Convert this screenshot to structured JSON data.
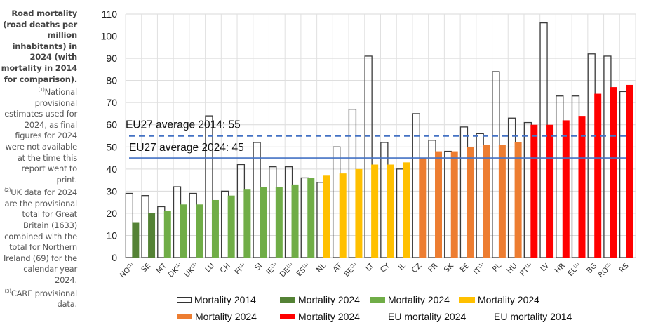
{
  "side_note": {
    "title": "Road mortality (road deaths per million inhabitants) in 2024 (with mortality in 2014 for comparison).",
    "notes": [
      {
        "marker": "(1)",
        "text": "National provisional estimates used for 2024, as final figures for 2024 were not available at the time this report went to print."
      },
      {
        "marker": "(2)",
        "text": "UK data for 2024 are the provisional total for Great Britain (1633) combined with the total for Northern Ireland (69) for the calendar year 2024."
      },
      {
        "marker": "(3)",
        "text": "CARE provisional data."
      }
    ]
  },
  "chart_data": {
    "type": "bar",
    "title": "Road mortality (road deaths per million inhabitants) in 2024 (with mortality in 2014 for comparison)",
    "xlabel": "",
    "ylabel": "",
    "ylim": [
      0,
      110
    ],
    "yticks": [
      0,
      10,
      20,
      30,
      40,
      50,
      60,
      70,
      80,
      90,
      100,
      110
    ],
    "grid": true,
    "categories": [
      {
        "code": "NO",
        "note": "(1)"
      },
      {
        "code": "SE",
        "note": ""
      },
      {
        "code": "MT",
        "note": ""
      },
      {
        "code": "DK",
        "note": "(1)"
      },
      {
        "code": "UK",
        "note": "(2)"
      },
      {
        "code": "LU",
        "note": ""
      },
      {
        "code": "CH",
        "note": ""
      },
      {
        "code": "FI",
        "note": "(1)"
      },
      {
        "code": "SI",
        "note": ""
      },
      {
        "code": "IE",
        "note": "(1)"
      },
      {
        "code": "DE",
        "note": "(1)"
      },
      {
        "code": "ES",
        "note": "(1)"
      },
      {
        "code": "NL",
        "note": ""
      },
      {
        "code": "AT",
        "note": ""
      },
      {
        "code": "BE",
        "note": "(1)"
      },
      {
        "code": "LT",
        "note": ""
      },
      {
        "code": "CY",
        "note": ""
      },
      {
        "code": "IL",
        "note": ""
      },
      {
        "code": "CZ",
        "note": ""
      },
      {
        "code": "FR",
        "note": ""
      },
      {
        "code": "SK",
        "note": ""
      },
      {
        "code": "EE",
        "note": ""
      },
      {
        "code": "IT",
        "note": "(1)"
      },
      {
        "code": "PL",
        "note": ""
      },
      {
        "code": "HU",
        "note": ""
      },
      {
        "code": "PT",
        "note": "(1)"
      },
      {
        "code": "LV",
        "note": ""
      },
      {
        "code": "HR",
        "note": ""
      },
      {
        "code": "EL",
        "note": "(1)"
      },
      {
        "code": "BG",
        "note": ""
      },
      {
        "code": "RO",
        "note": "(3)"
      },
      {
        "code": "RS",
        "note": ""
      }
    ],
    "series": [
      {
        "name": "Mortality 2014",
        "style": "outline",
        "values": [
          29,
          28,
          23,
          32,
          29,
          64,
          30,
          42,
          52,
          41,
          41,
          36,
          34,
          50,
          67,
          91,
          52,
          40,
          65,
          53,
          48,
          59,
          56,
          84,
          63,
          61,
          106,
          73,
          73,
          92,
          91,
          75
        ]
      },
      {
        "name": "Mortality 2024",
        "style": "filled",
        "values": [
          16,
          20,
          21,
          24,
          24,
          26,
          28,
          31,
          32,
          32,
          33,
          36,
          37,
          38,
          40,
          42,
          42,
          43,
          45,
          48,
          48,
          50,
          51,
          51,
          52,
          60,
          60,
          62,
          64,
          74,
          77,
          78
        ],
        "color_groups": [
          1,
          1,
          2,
          2,
          2,
          2,
          2,
          2,
          2,
          2,
          2,
          2,
          3,
          3,
          3,
          3,
          3,
          3,
          4,
          4,
          4,
          4,
          4,
          4,
          4,
          5,
          5,
          5,
          5,
          5,
          5,
          5
        ]
      }
    ],
    "reference_lines": [
      {
        "name": "EU mortality 2024",
        "value": 45,
        "style": "solid",
        "color": "#4472C4",
        "label": "EU27 average 2024: 45"
      },
      {
        "name": "EU mortality 2014",
        "value": 55,
        "style": "dashed",
        "color": "#4472C4",
        "label": "EU27 average 2014: 55"
      }
    ],
    "group_colors": {
      "1": "#548235",
      "2": "#70AD47",
      "3": "#FFC000",
      "4": "#ED7D31",
      "5": "#FF0000"
    },
    "legend": {
      "placement": "bottom",
      "items": [
        {
          "label": "Mortality 2014",
          "kind": "outline",
          "color": "#333333"
        },
        {
          "label": "Mortality 2024",
          "kind": "fill",
          "color": "#548235"
        },
        {
          "label": "Mortality 2024",
          "kind": "fill",
          "color": "#70AD47"
        },
        {
          "label": "Mortality 2024",
          "kind": "fill",
          "color": "#FFC000"
        },
        {
          "label": "Mortality 2024",
          "kind": "fill",
          "color": "#ED7D31"
        },
        {
          "label": "Mortality 2024",
          "kind": "fill",
          "color": "#FF0000"
        },
        {
          "label": "EU mortality 2024",
          "kind": "line",
          "color": "#4472C4"
        },
        {
          "label": "EU mortality 2014",
          "kind": "dash",
          "color": "#4472C4"
        }
      ]
    }
  }
}
